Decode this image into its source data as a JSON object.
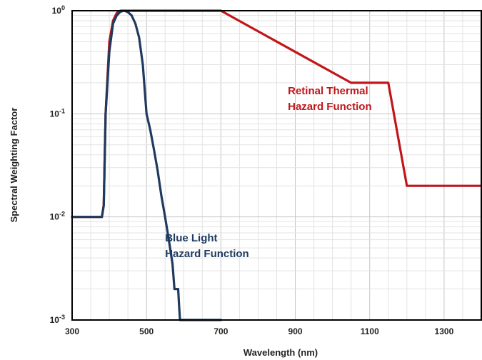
{
  "chart_data": {
    "type": "line",
    "title": "",
    "xlabel": "Wavelength (nm)",
    "ylabel": "Spectral Weighting Factor",
    "xlim": [
      300,
      1400
    ],
    "ylim": [
      0.001,
      1
    ],
    "yscale": "log",
    "grid": true,
    "x_ticks": [
      300,
      500,
      700,
      900,
      1100,
      1300
    ],
    "y_ticks": [
      {
        "value": 0.001,
        "base": "10",
        "exp": "-3"
      },
      {
        "value": 0.01,
        "base": "10",
        "exp": "-2"
      },
      {
        "value": 0.1,
        "base": "10",
        "exp": "-1"
      },
      {
        "value": 1,
        "base": "10",
        "exp": "0"
      }
    ],
    "series": [
      {
        "name": "Retinal Thermal Hazard Function",
        "color": "#c0161b",
        "points": [
          [
            300,
            0.01
          ],
          [
            380,
            0.01
          ],
          [
            385,
            0.013
          ],
          [
            390,
            0.1
          ],
          [
            400,
            0.5
          ],
          [
            410,
            0.8
          ],
          [
            420,
            0.95
          ],
          [
            430,
            1.0
          ],
          [
            700,
            1.0
          ],
          [
            1050,
            0.2
          ],
          [
            1150,
            0.2
          ],
          [
            1200,
            0.02
          ],
          [
            1400,
            0.02
          ]
        ]
      },
      {
        "name": "Blue Light Hazard Function",
        "color": "#1f3a5f",
        "points": [
          [
            300,
            0.01
          ],
          [
            380,
            0.01
          ],
          [
            385,
            0.013
          ],
          [
            390,
            0.1
          ],
          [
            400,
            0.4
          ],
          [
            410,
            0.75
          ],
          [
            420,
            0.9
          ],
          [
            430,
            0.98
          ],
          [
            440,
            1.0
          ],
          [
            450,
            0.97
          ],
          [
            460,
            0.9
          ],
          [
            470,
            0.75
          ],
          [
            480,
            0.55
          ],
          [
            490,
            0.3
          ],
          [
            500,
            0.1
          ],
          [
            510,
            0.07
          ],
          [
            520,
            0.045
          ],
          [
            530,
            0.028
          ],
          [
            540,
            0.016
          ],
          [
            550,
            0.01
          ],
          [
            560,
            0.006
          ],
          [
            570,
            0.0035
          ],
          [
            575,
            0.002
          ],
          [
            585,
            0.002
          ],
          [
            588,
            0.0013
          ],
          [
            590,
            0.001
          ],
          [
            700,
            0.001
          ]
        ]
      }
    ],
    "annotations": [
      {
        "lines": [
          "Retinal Thermal",
          "Hazard Function"
        ],
        "x": 880,
        "y": 0.155,
        "color": "#c0161b"
      },
      {
        "lines": [
          "Blue Light",
          "Hazard Function"
        ],
        "x": 550,
        "y": 0.0058,
        "color": "#1f3a5f"
      }
    ]
  }
}
